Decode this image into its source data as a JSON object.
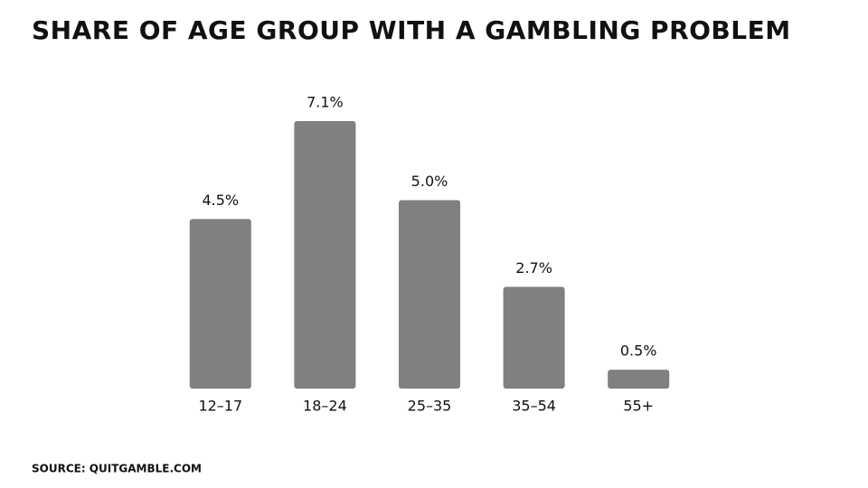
{
  "chart_data": {
    "type": "bar",
    "title": "SHARE OF AGE GROUP WITH A GAMBLING PROBLEM",
    "categories": [
      "12–17",
      "18–24",
      "25–35",
      "35–54",
      "55+"
    ],
    "values": [
      4.5,
      7.1,
      5.0,
      2.7,
      0.5
    ],
    "value_labels": [
      "4.5%",
      "7.1%",
      "5.0%",
      "2.7%",
      "0.5%"
    ],
    "color": "#808080",
    "source": "SOURCE: QUITGAMBLE.COM"
  }
}
